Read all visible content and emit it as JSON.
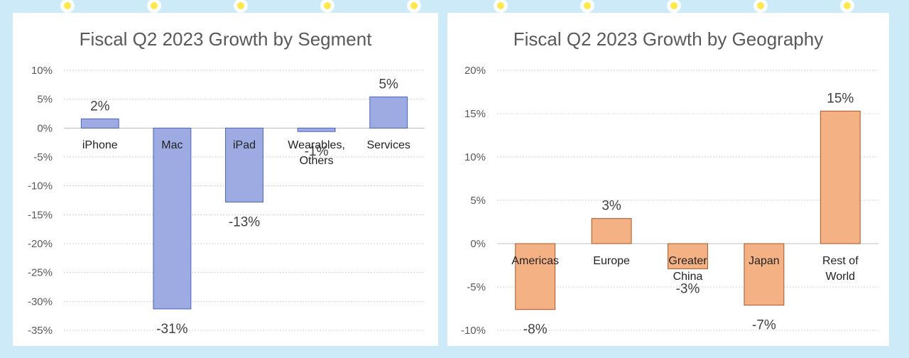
{
  "chart_data": [
    {
      "type": "bar",
      "title": "Fiscal Q2 2023 Growth by Segment",
      "categories": [
        "iPhone",
        "Mac",
        "iPad",
        "Wearables, Others",
        "Services"
      ],
      "values": [
        1.6,
        -31.3,
        -12.8,
        -0.6,
        5.4
      ],
      "value_labels": [
        "2%",
        "-31%",
        "-13%",
        "-1%",
        "5%"
      ],
      "color": "#9dabe2",
      "edge_color": "#4a63b8",
      "ylim": [
        -35,
        10
      ],
      "yticks": [
        {
          "value": -35,
          "label": "-35%"
        },
        {
          "value": -30,
          "label": "-30%"
        },
        {
          "value": -25,
          "label": "-25%"
        },
        {
          "value": -20,
          "label": "-20%"
        },
        {
          "value": -15,
          "label": "-15%"
        },
        {
          "value": -10,
          "label": "-10%"
        },
        {
          "value": -5,
          "label": "-5%"
        },
        {
          "value": 0,
          "label": "0%"
        },
        {
          "value": 5,
          "label": "5%"
        },
        {
          "value": 10,
          "label": "10%"
        }
      ],
      "grid": true
    },
    {
      "type": "bar",
      "title": "Fiscal Q2 2023 Growth by Geography",
      "categories": [
        "Americas",
        "Europe",
        "Greater China",
        "Japan",
        "Rest of World"
      ],
      "values": [
        -7.6,
        2.9,
        -2.9,
        -7.1,
        15.3
      ],
      "value_labels": [
        "-8%",
        "3%",
        "-3%",
        "-7%",
        "15%"
      ],
      "color": "#f4b183",
      "edge_color": "#a3572a",
      "ylim": [
        -10,
        20
      ],
      "yticks": [
        {
          "value": -10,
          "label": "-10%"
        },
        {
          "value": -5,
          "label": "-5%"
        },
        {
          "value": 0,
          "label": "0%"
        },
        {
          "value": 5,
          "label": "5%"
        },
        {
          "value": 10,
          "label": "10%"
        },
        {
          "value": 15,
          "label": "15%"
        },
        {
          "value": 20,
          "label": "20%"
        }
      ],
      "grid": true
    }
  ]
}
